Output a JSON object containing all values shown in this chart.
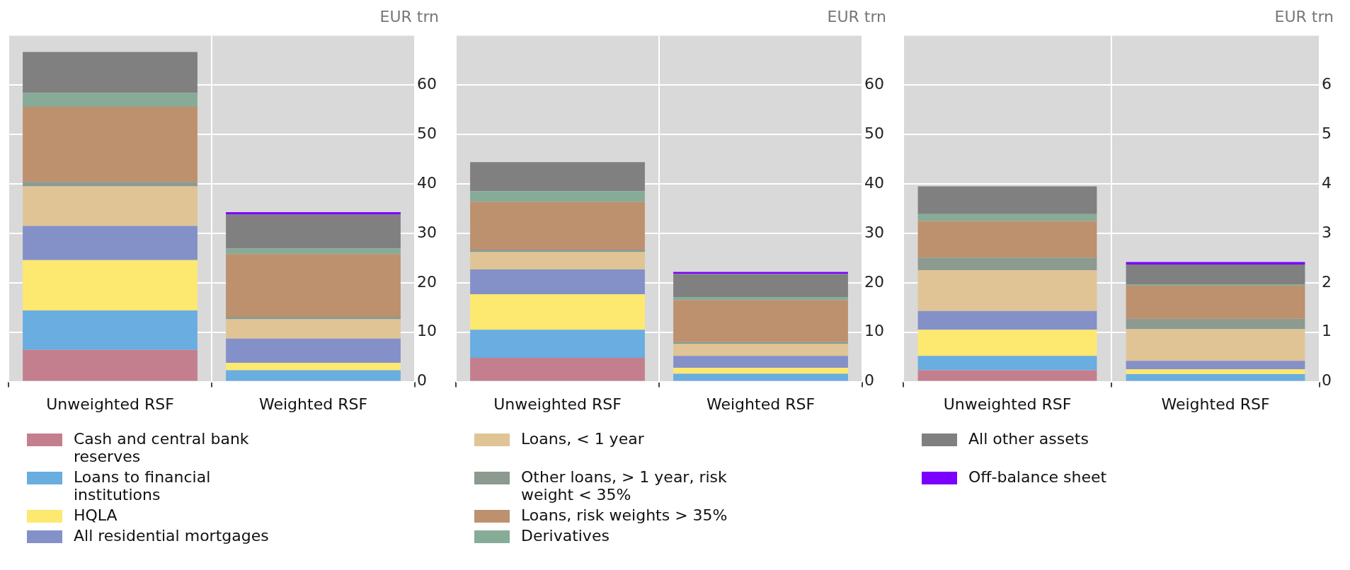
{
  "chart_data": [
    {
      "type": "bar",
      "ylabel": "EUR trn",
      "categories": [
        "Unweighted RSF",
        "Weighted RSF"
      ],
      "stacked": true,
      "ylim": [
        0,
        70
      ],
      "yticks": [
        0,
        10,
        20,
        30,
        40,
        50,
        60
      ],
      "grid": true,
      "legend": "bottom",
      "series": [
        {
          "name": "Cash and central bank reserves",
          "color": "#c47f8f",
          "values": [
            6.4,
            0
          ]
        },
        {
          "name": "Loans to financial institutions",
          "color": "#6aade0",
          "values": [
            8.0,
            2.3
          ]
        },
        {
          "name": "HQLA",
          "color": "#fde870",
          "values": [
            10.2,
            1.5
          ]
        },
        {
          "name": "All residential mortgages",
          "color": "#8490c8",
          "values": [
            6.9,
            4.9
          ]
        },
        {
          "name": "Loans, < 1 year",
          "color": "#e0c495",
          "values": [
            8.0,
            3.9
          ]
        },
        {
          "name": "Other loans, > 1 year, risk weight < 35%",
          "color": "#8c9a90",
          "values": [
            0.9,
            0.5
          ]
        },
        {
          "name": "Loans, risk weights > 35%",
          "color": "#bd916e",
          "values": [
            15.2,
            12.7
          ]
        },
        {
          "name": "Derivatives",
          "color": "#86ac98",
          "values": [
            2.8,
            1.1
          ]
        },
        {
          "name": "All other assets",
          "color": "#808080",
          "values": [
            8.3,
            6.9
          ]
        },
        {
          "name": "Off-balance sheet",
          "color": "#7a00ff",
          "values": [
            0,
            0.5
          ]
        }
      ]
    },
    {
      "type": "bar",
      "ylabel": "EUR trn",
      "categories": [
        "Unweighted RSF",
        "Weighted RSF"
      ],
      "stacked": true,
      "ylim": [
        0,
        70
      ],
      "yticks": [
        0,
        10,
        20,
        30,
        40,
        50,
        60
      ],
      "grid": true,
      "series": [
        {
          "color": "#c47f8f",
          "values": [
            4.8,
            0
          ]
        },
        {
          "color": "#6aade0",
          "values": [
            5.7,
            1.6
          ]
        },
        {
          "color": "#fde870",
          "values": [
            7.2,
            1.2
          ]
        },
        {
          "color": "#8490c8",
          "values": [
            5.0,
            2.4
          ]
        },
        {
          "color": "#e0c495",
          "values": [
            3.5,
            2.4
          ]
        },
        {
          "color": "#8c9a90",
          "values": [
            0.5,
            0.4
          ]
        },
        {
          "color": "#bd916e",
          "values": [
            9.7,
            8.5
          ]
        },
        {
          "color": "#86ac98",
          "values": [
            2.1,
            0.6
          ]
        },
        {
          "color": "#808080",
          "values": [
            5.9,
            4.7
          ]
        },
        {
          "color": "#7a00ff",
          "values": [
            0,
            0.4
          ]
        }
      ]
    },
    {
      "type": "bar",
      "ylabel": "EUR trn",
      "categories": [
        "Unweighted RSF",
        "Weighted RSF"
      ],
      "stacked": true,
      "ylim": [
        0,
        7
      ],
      "yticks": [
        0,
        1,
        2,
        3,
        4,
        5,
        6
      ],
      "grid": true,
      "series": [
        {
          "color": "#c47f8f",
          "values": [
            0.23,
            0
          ]
        },
        {
          "color": "#6aade0",
          "values": [
            0.29,
            0.15
          ]
        },
        {
          "color": "#fde870",
          "values": [
            0.53,
            0.1
          ]
        },
        {
          "color": "#8490c8",
          "values": [
            0.38,
            0.17
          ]
        },
        {
          "color": "#e0c495",
          "values": [
            0.82,
            0.64
          ]
        },
        {
          "color": "#8c9a90",
          "values": [
            0.26,
            0.21
          ]
        },
        {
          "color": "#bd916e",
          "values": [
            0.74,
            0.67
          ]
        },
        {
          "color": "#86ac98",
          "values": [
            0.14,
            0.02
          ]
        },
        {
          "color": "#808080",
          "values": [
            0.56,
            0.41
          ]
        },
        {
          "color": "#7a00ff",
          "values": [
            0,
            0.05
          ]
        }
      ]
    }
  ]
}
